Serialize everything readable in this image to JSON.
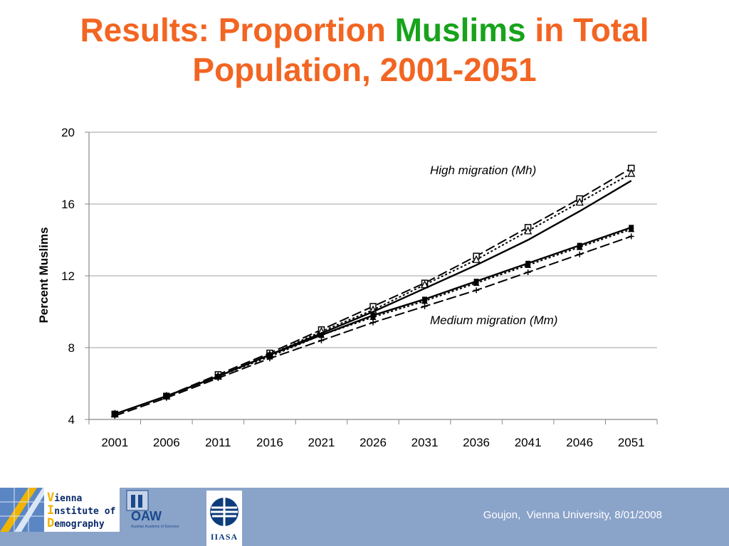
{
  "slide": {
    "title_part1": "Results: Proportion ",
    "title_highlight": "Muslims",
    "title_part2": " in Total",
    "title_line2": "Population, 2001-2051",
    "highlight_color": "#17a31a",
    "title_color": "#f26522"
  },
  "footer": {
    "credit": "Goujon,  Vienna University, 8/01/2008",
    "vid_logo_line1_cap": "V",
    "vid_logo_line1": "ienna",
    "vid_logo_line2_cap": "I",
    "vid_logo_line2": "nstitute of",
    "vid_logo_line3_cap": "D",
    "vid_logo_line3": "emography",
    "oaw_logo": "OAW",
    "oaw_logo_sub": "Austrian Academy of Sciences",
    "iiasa_logo": "IIASA",
    "background": "#8aa3c9"
  },
  "chart_data": {
    "type": "line",
    "title": "",
    "xlabel": "",
    "ylabel": "Percent Muslims",
    "categories": [
      "2001",
      "2006",
      "2011",
      "2016",
      "2021",
      "2026",
      "2031",
      "2036",
      "2041",
      "2046",
      "2051"
    ],
    "ylim": [
      4,
      20
    ],
    "yticks": [
      4,
      8,
      12,
      16,
      20
    ],
    "grid": "horizontal",
    "annotations": [
      "High migration (Mh)",
      "Medium migration (Mm)"
    ],
    "series": [
      {
        "marker": "open-square",
        "dash": "long-dash",
        "group": "high",
        "values": [
          4.3,
          5.3,
          6.5,
          7.7,
          9.0,
          10.3,
          11.6,
          13.1,
          14.7,
          16.3,
          18.0
        ]
      },
      {
        "marker": "open-triangle",
        "dash": "dotted",
        "group": "high",
        "values": [
          4.3,
          5.3,
          6.4,
          7.6,
          8.9,
          10.1,
          11.5,
          12.9,
          14.5,
          16.1,
          17.7
        ]
      },
      {
        "marker": "none",
        "dash": "solid",
        "group": "high",
        "values": [
          4.3,
          5.3,
          6.4,
          7.6,
          8.8,
          10.0,
          11.3,
          12.6,
          14.0,
          15.6,
          17.3
        ]
      },
      {
        "marker": "filled-square",
        "dash": "solid",
        "group": "medium",
        "values": [
          4.3,
          5.3,
          6.4,
          7.6,
          8.7,
          9.8,
          10.7,
          11.7,
          12.7,
          13.7,
          14.7
        ]
      },
      {
        "marker": "filled-triangle",
        "dash": "dotted",
        "group": "medium",
        "values": [
          4.3,
          5.3,
          6.4,
          7.5,
          8.7,
          9.7,
          10.6,
          11.6,
          12.6,
          13.6,
          14.6
        ]
      },
      {
        "marker": "plus",
        "dash": "long-dash",
        "group": "medium",
        "values": [
          4.2,
          5.2,
          6.3,
          7.4,
          8.4,
          9.4,
          10.3,
          11.2,
          12.2,
          13.2,
          14.2
        ]
      }
    ]
  }
}
